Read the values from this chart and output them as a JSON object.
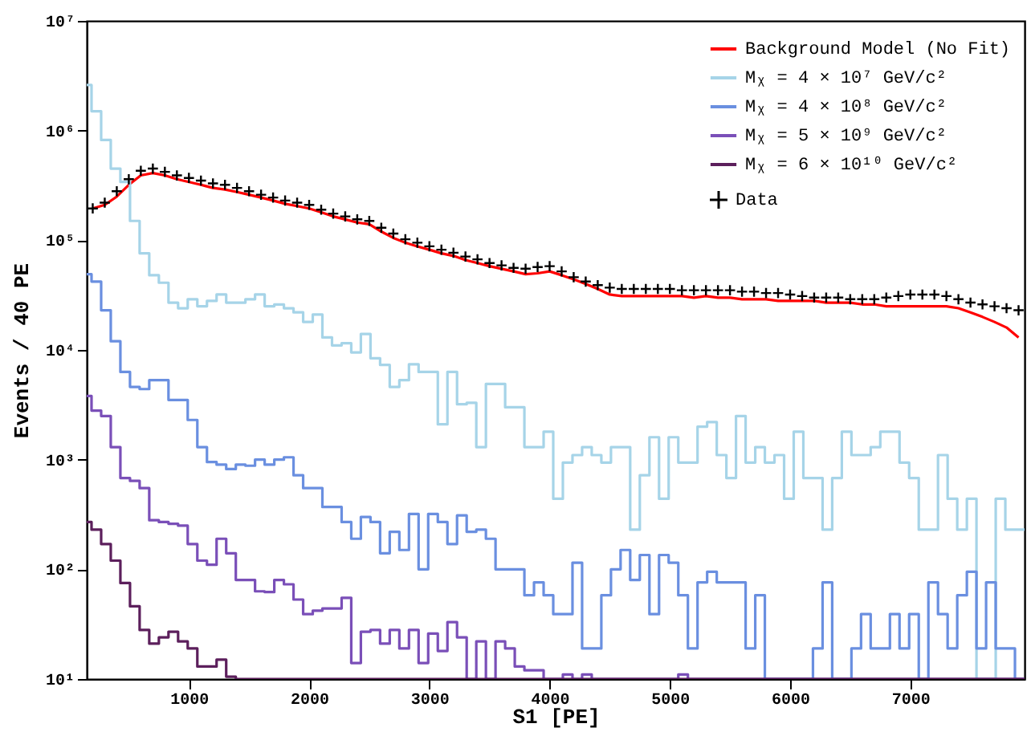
{
  "chart_data": {
    "type": "histogram",
    "xlabel": "S1 [PE]",
    "ylabel": "Events / 40 PE",
    "log": "y",
    "legend": "top right",
    "grid": false,
    "xlim": [
      150,
      7950
    ],
    "xticks": [
      1000,
      2000,
      3000,
      4000,
      5000,
      6000,
      7000
    ],
    "ylim": [
      10,
      10000000
    ],
    "yticks": [
      {
        "value": 10,
        "label": "10¹"
      },
      {
        "value": 100,
        "label": "10²"
      },
      {
        "value": 1000,
        "label": "10³"
      },
      {
        "value": 10000,
        "label": "10⁴"
      },
      {
        "value": 100000,
        "label": "10⁵"
      },
      {
        "value": 1000000,
        "label": "10⁶"
      },
      {
        "value": 10000000,
        "label": "10⁷"
      }
    ],
    "bins": [
      150,
      190,
      270,
      350,
      430,
      510,
      590,
      670,
      750,
      830,
      910,
      990,
      1070,
      1150,
      1230,
      1310,
      1390,
      1470,
      1550,
      1630,
      1710,
      1790,
      1870,
      1950,
      2030,
      2110,
      2190,
      2270,
      2350,
      2430,
      2510,
      2590,
      2670,
      2750,
      2830,
      2910,
      2990,
      3070,
      3150,
      3230,
      3310,
      3390,
      3470,
      3550,
      3630,
      3710,
      3790,
      3870,
      3950,
      4030,
      4110,
      4190,
      4270,
      4350,
      4430,
      4510,
      4590,
      4670,
      4750,
      4830,
      4910,
      4990,
      5070,
      5150,
      5230,
      5310,
      5390,
      5470,
      5550,
      5630,
      5710,
      5790,
      5870,
      5950,
      6030,
      6110,
      6190,
      6270,
      6350,
      6430,
      6510,
      6590,
      6670,
      6750,
      6830,
      6910,
      6990,
      7070,
      7150,
      7230,
      7310,
      7390,
      7470,
      7550,
      7630,
      7710,
      7790,
      7870,
      7950
    ],
    "series": [
      {
        "name": "Background Model (No Fit)",
        "type": "line",
        "color": "#ff0000",
        "x": [
          200,
          300,
          400,
          500,
          600,
          700,
          800,
          900,
          1000,
          1100,
          1200,
          1300,
          1400,
          1500,
          1600,
          1700,
          1800,
          1900,
          2000,
          2100,
          2200,
          2300,
          2400,
          2500,
          2600,
          2700,
          2800,
          2900,
          3000,
          3100,
          3200,
          3300,
          3400,
          3500,
          3600,
          3700,
          3800,
          3900,
          4000,
          4100,
          4200,
          4300,
          4400,
          4500,
          4600,
          4700,
          4800,
          4900,
          5000,
          5100,
          5200,
          5300,
          5400,
          5500,
          5600,
          5700,
          5800,
          5900,
          6000,
          6100,
          6200,
          6300,
          6400,
          6500,
          6600,
          6700,
          6800,
          6900,
          7000,
          7100,
          7200,
          7300,
          7400,
          7500,
          7600,
          7700,
          7800,
          7900
        ],
        "values": [
          195000,
          210000,
          250000,
          320000,
          390000,
          410000,
          390000,
          360000,
          340000,
          320000,
          300000,
          290000,
          275000,
          260000,
          245000,
          230000,
          215000,
          205000,
          195000,
          180000,
          165000,
          155000,
          145000,
          140000,
          120000,
          105000,
          95000,
          88000,
          82000,
          76000,
          72000,
          66000,
          62000,
          58000,
          55000,
          52000,
          49000,
          50000,
          52000,
          48000,
          44000,
          40000,
          36000,
          32000,
          31000,
          31000,
          31000,
          31000,
          31000,
          31000,
          30000,
          31000,
          30000,
          30000,
          29000,
          29000,
          29000,
          28000,
          28000,
          28000,
          28000,
          27000,
          27000,
          27000,
          26000,
          26000,
          25000,
          25000,
          25000,
          25000,
          25000,
          25000,
          24000,
          22000,
          20000,
          18000,
          16000,
          13000
        ]
      },
      {
        "name": "Mᵪ = 4 × 10⁷ GeV/c²",
        "color": "#a6d4e8",
        "values": [
          2600000,
          1500000,
          820000,
          450000,
          340000,
          150000,
          76000,
          48000,
          41000,
          27000,
          24000,
          29000,
          25000,
          28000,
          32000,
          27000,
          27000,
          29000,
          32000,
          25000,
          26000,
          24000,
          22000,
          18000,
          21000,
          13000,
          11000,
          11500,
          9500,
          14000,
          8400,
          7300,
          4600,
          5300,
          7400,
          6300,
          6300,
          2100,
          6300,
          3200,
          3300,
          1300,
          4900,
          4900,
          3000,
          3000,
          1300,
          1300,
          1800,
          440,
          940,
          1100,
          1300,
          1100,
          940,
          1300,
          1300,
          230,
          720,
          1600,
          440,
          1600,
          940,
          940,
          2000,
          2200,
          1100,
          680,
          2500,
          940,
          1300,
          940,
          1100,
          440,
          1800,
          680,
          680,
          230,
          680,
          1800,
          1100,
          1100,
          1300,
          1800,
          1800,
          940,
          680,
          230,
          230,
          1100,
          440,
          230,
          440,
          null,
          null,
          440,
          230,
          230
        ]
      },
      {
        "name": "Mᵪ = 4 × 10⁸ GeV/c²",
        "color": "#6a8fe0",
        "values": [
          49000,
          42000,
          23000,
          12000,
          6300,
          4600,
          4400,
          5300,
          5300,
          3500,
          3500,
          2300,
          1300,
          950,
          900,
          820,
          900,
          880,
          1000,
          900,
          1000,
          1050,
          720,
          550,
          550,
          370,
          370,
          270,
          190,
          300,
          270,
          140,
          220,
          150,
          320,
          100,
          320,
          270,
          170,
          310,
          220,
          230,
          190,
          100,
          100,
          100,
          58,
          76,
          58,
          39,
          39,
          115,
          19,
          19,
          58,
          100,
          150,
          80,
          135,
          39,
          135,
          115,
          58,
          19,
          76,
          95,
          76,
          76,
          76,
          19,
          58,
          null,
          null,
          null,
          null,
          null,
          19,
          76,
          null,
          null,
          19,
          39,
          19,
          19,
          39,
          19,
          39,
          null,
          76,
          39,
          19,
          58,
          95,
          19,
          76,
          19,
          19,
          null
        ]
      },
      {
        "name": "Mᵪ = 5 × 10⁹ GeV/c²",
        "color": "#7a4fb8",
        "values": [
          3800,
          2800,
          2500,
          1300,
          680,
          640,
          550,
          280,
          270,
          260,
          250,
          170,
          120,
          110,
          190,
          140,
          80,
          80,
          63,
          62,
          80,
          73,
          53,
          39,
          42,
          44,
          44,
          55,
          14,
          27,
          28,
          21,
          28,
          19,
          28,
          14,
          26,
          18,
          33,
          24,
          null,
          22,
          null,
          22,
          19,
          13,
          12,
          12,
          null,
          null,
          11,
          null,
          11,
          null,
          null,
          null,
          null,
          null,
          null,
          null,
          null,
          null,
          11,
          null,
          null,
          null,
          null,
          null,
          null,
          null,
          null,
          null,
          null,
          null,
          null,
          null,
          null,
          null,
          null,
          null,
          null,
          null,
          null,
          null,
          null,
          null,
          null,
          null,
          null,
          null,
          null,
          null,
          null,
          null,
          null,
          null,
          null,
          null
        ]
      },
      {
        "name": "Mᵪ = 6 × 10¹⁰ GeV/c²",
        "color": "#5c1f5c",
        "values": [
          270,
          230,
          170,
          120,
          75,
          46,
          28,
          21,
          24,
          27,
          22,
          19,
          13,
          13,
          15,
          10.5,
          null,
          null,
          null,
          null,
          null,
          null,
          null,
          null,
          null,
          null,
          null,
          null,
          null,
          null,
          null,
          null,
          null,
          null,
          null,
          null,
          null,
          null,
          null,
          null,
          null,
          null,
          null,
          null,
          null,
          null,
          null,
          null,
          null,
          null,
          null,
          null,
          null,
          null,
          null,
          null,
          null,
          null,
          null,
          null,
          null,
          null,
          null,
          null,
          null,
          null,
          null,
          null,
          null,
          null,
          null,
          null,
          null,
          null,
          null,
          null,
          null,
          null,
          null,
          null,
          null,
          null,
          null,
          null,
          null,
          null,
          null,
          null,
          null,
          null,
          null,
          null,
          null,
          null,
          null,
          null,
          null,
          null
        ]
      },
      {
        "name": "Data",
        "type": "scatter",
        "marker": "cross",
        "color": "#000000",
        "x": [
          200,
          300,
          400,
          500,
          600,
          700,
          800,
          900,
          1000,
          1100,
          1200,
          1300,
          1400,
          1500,
          1600,
          1700,
          1800,
          1900,
          2000,
          2100,
          2200,
          2300,
          2400,
          2500,
          2600,
          2700,
          2800,
          2900,
          3000,
          3100,
          3200,
          3300,
          3400,
          3500,
          3600,
          3700,
          3800,
          3900,
          4000,
          4100,
          4200,
          4300,
          4400,
          4500,
          4600,
          4700,
          4800,
          4900,
          5000,
          5100,
          5200,
          5300,
          5400,
          5500,
          5600,
          5700,
          5800,
          5900,
          6000,
          6100,
          6200,
          6300,
          6400,
          6500,
          6600,
          6700,
          6800,
          6900,
          7000,
          7100,
          7200,
          7300,
          7400,
          7500,
          7600,
          7700,
          7800,
          7900
        ],
        "values": [
          195000,
          220000,
          280000,
          360000,
          430000,
          450000,
          420000,
          390000,
          370000,
          350000,
          330000,
          320000,
          300000,
          280000,
          260000,
          245000,
          230000,
          220000,
          210000,
          190000,
          175000,
          165000,
          155000,
          150000,
          130000,
          115000,
          102000,
          95000,
          88000,
          82000,
          77000,
          71000,
          67000,
          62000,
          59000,
          56000,
          55000,
          57000,
          58000,
          52000,
          46000,
          42000,
          39000,
          37000,
          36000,
          36000,
          36000,
          36000,
          36000,
          35000,
          35000,
          35000,
          35000,
          35000,
          34000,
          34000,
          33000,
          33000,
          32000,
          31000,
          30000,
          30000,
          30000,
          29000,
          29000,
          29000,
          30000,
          31000,
          32000,
          32000,
          32000,
          31000,
          29000,
          27000,
          26000,
          25000,
          24000,
          23000
        ]
      }
    ]
  }
}
